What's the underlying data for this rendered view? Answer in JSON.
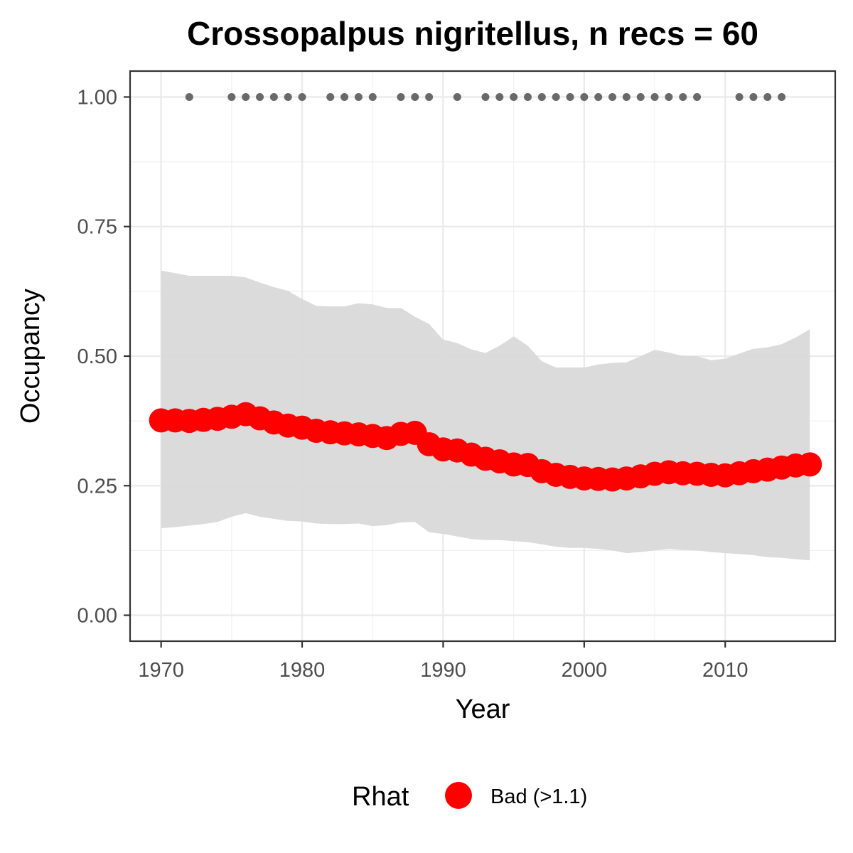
{
  "chart_data": {
    "type": "line",
    "title": "Crossopalpus nigritellus, n recs = 60",
    "xlabel": "Year",
    "ylabel": "Occupancy",
    "xlim": [
      1967.8,
      2017.8
    ],
    "ylim": [
      -0.05,
      1.05
    ],
    "x_ticks": [
      1970,
      1980,
      1990,
      2000,
      2010
    ],
    "x_tick_labels": [
      "1970",
      "1980",
      "1990",
      "2000",
      "2010"
    ],
    "y_ticks": [
      0,
      0.25,
      0.5,
      0.75,
      1
    ],
    "y_tick_labels": [
      "0.00",
      "0.25",
      "0.50",
      "0.75",
      "1.00"
    ],
    "grid": true,
    "legend": {
      "title": "Rhat",
      "position": "bottom",
      "entries": [
        {
          "label": "Bad (>1.1)",
          "color": "#ff0000"
        }
      ]
    },
    "colors": {
      "mean": "#ff0000",
      "ribbon": "#d9d9d9",
      "records": "#696969"
    },
    "years": [
      1970,
      1971,
      1972,
      1973,
      1974,
      1975,
      1976,
      1977,
      1978,
      1979,
      1980,
      1981,
      1982,
      1983,
      1984,
      1985,
      1986,
      1987,
      1988,
      1989,
      1990,
      1991,
      1992,
      1993,
      1994,
      1995,
      1996,
      1997,
      1998,
      1999,
      2000,
      2001,
      2002,
      2003,
      2004,
      2005,
      2006,
      2007,
      2008,
      2009,
      2010,
      2011,
      2012,
      2013,
      2014,
      2015,
      2016
    ],
    "series": [
      {
        "name": "Bad (>1.1)",
        "role": "mean",
        "values": [
          0.376,
          0.376,
          0.375,
          0.377,
          0.379,
          0.383,
          0.388,
          0.38,
          0.372,
          0.366,
          0.362,
          0.356,
          0.353,
          0.351,
          0.349,
          0.346,
          0.342,
          0.35,
          0.352,
          0.33,
          0.32,
          0.318,
          0.31,
          0.302,
          0.297,
          0.291,
          0.29,
          0.278,
          0.271,
          0.267,
          0.264,
          0.263,
          0.262,
          0.264,
          0.268,
          0.273,
          0.276,
          0.274,
          0.273,
          0.271,
          0.27,
          0.274,
          0.278,
          0.281,
          0.285,
          0.289,
          0.291
        ]
      },
      {
        "role": "upper",
        "values": [
          0.665,
          0.66,
          0.655,
          0.655,
          0.655,
          0.655,
          0.652,
          0.642,
          0.633,
          0.626,
          0.61,
          0.597,
          0.596,
          0.596,
          0.602,
          0.6,
          0.593,
          0.593,
          0.576,
          0.562,
          0.532,
          0.525,
          0.513,
          0.506,
          0.52,
          0.538,
          0.52,
          0.49,
          0.478,
          0.478,
          0.478,
          0.484,
          0.487,
          0.488,
          0.5,
          0.512,
          0.507,
          0.5,
          0.5,
          0.492,
          0.495,
          0.505,
          0.514,
          0.517,
          0.523,
          0.536,
          0.552
        ]
      },
      {
        "role": "lower",
        "values": [
          0.168,
          0.17,
          0.173,
          0.176,
          0.18,
          0.19,
          0.197,
          0.19,
          0.186,
          0.182,
          0.181,
          0.177,
          0.176,
          0.176,
          0.177,
          0.172,
          0.174,
          0.179,
          0.18,
          0.16,
          0.157,
          0.152,
          0.147,
          0.145,
          0.145,
          0.143,
          0.141,
          0.137,
          0.132,
          0.13,
          0.13,
          0.128,
          0.125,
          0.12,
          0.122,
          0.125,
          0.128,
          0.126,
          0.125,
          0.122,
          0.12,
          0.118,
          0.116,
          0.112,
          0.111,
          0.108,
          0.106
        ]
      }
    ],
    "records": {
      "y": 1,
      "years": [
        1972,
        1975,
        1976,
        1977,
        1978,
        1979,
        1980,
        1982,
        1983,
        1984,
        1985,
        1987,
        1988,
        1989,
        1991,
        1993,
        1994,
        1995,
        1996,
        1997,
        1998,
        1999,
        2000,
        2001,
        2002,
        2003,
        2004,
        2005,
        2006,
        2007,
        2008,
        2011,
        2012,
        2013,
        2014
      ]
    }
  }
}
